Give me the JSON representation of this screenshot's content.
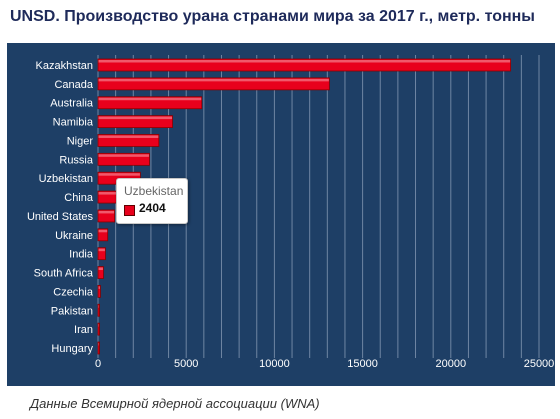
{
  "title": "UNSD. Производство урана странами мира за 2017 г., метр. тонны",
  "source": "Данные Всемирной ядерной ассоциации (WNA)",
  "colors": {
    "panel": "#1e3f66",
    "bar": "#e8001c",
    "bar_dark": "#8a0000",
    "grid": "#6f86a3",
    "label": "#ffffff"
  },
  "tooltip": {
    "name": "Uzbekistan",
    "value": "2404"
  },
  "chart_data": {
    "type": "bar",
    "orientation": "horizontal",
    "categories": [
      "Kazakhstan",
      "Canada",
      "Australia",
      "Namibia",
      "Niger",
      "Russia",
      "Uzbekistan",
      "China",
      "United States",
      "Ukraine",
      "India",
      "South Africa",
      "Czechia",
      "Pakistan",
      "Iran",
      "Hungary"
    ],
    "values": [
      23391,
      13116,
      5882,
      4224,
      3449,
      2917,
      2404,
      1885,
      940,
      550,
      421,
      308,
      138,
      45,
      40,
      3
    ],
    "xlim": [
      0,
      25000
    ],
    "xticks": [
      0,
      5000,
      10000,
      15000,
      20000,
      25000
    ],
    "grid": true,
    "title": "UNSD. Производство урана странами мира за 2017 г., метр. тонны"
  }
}
